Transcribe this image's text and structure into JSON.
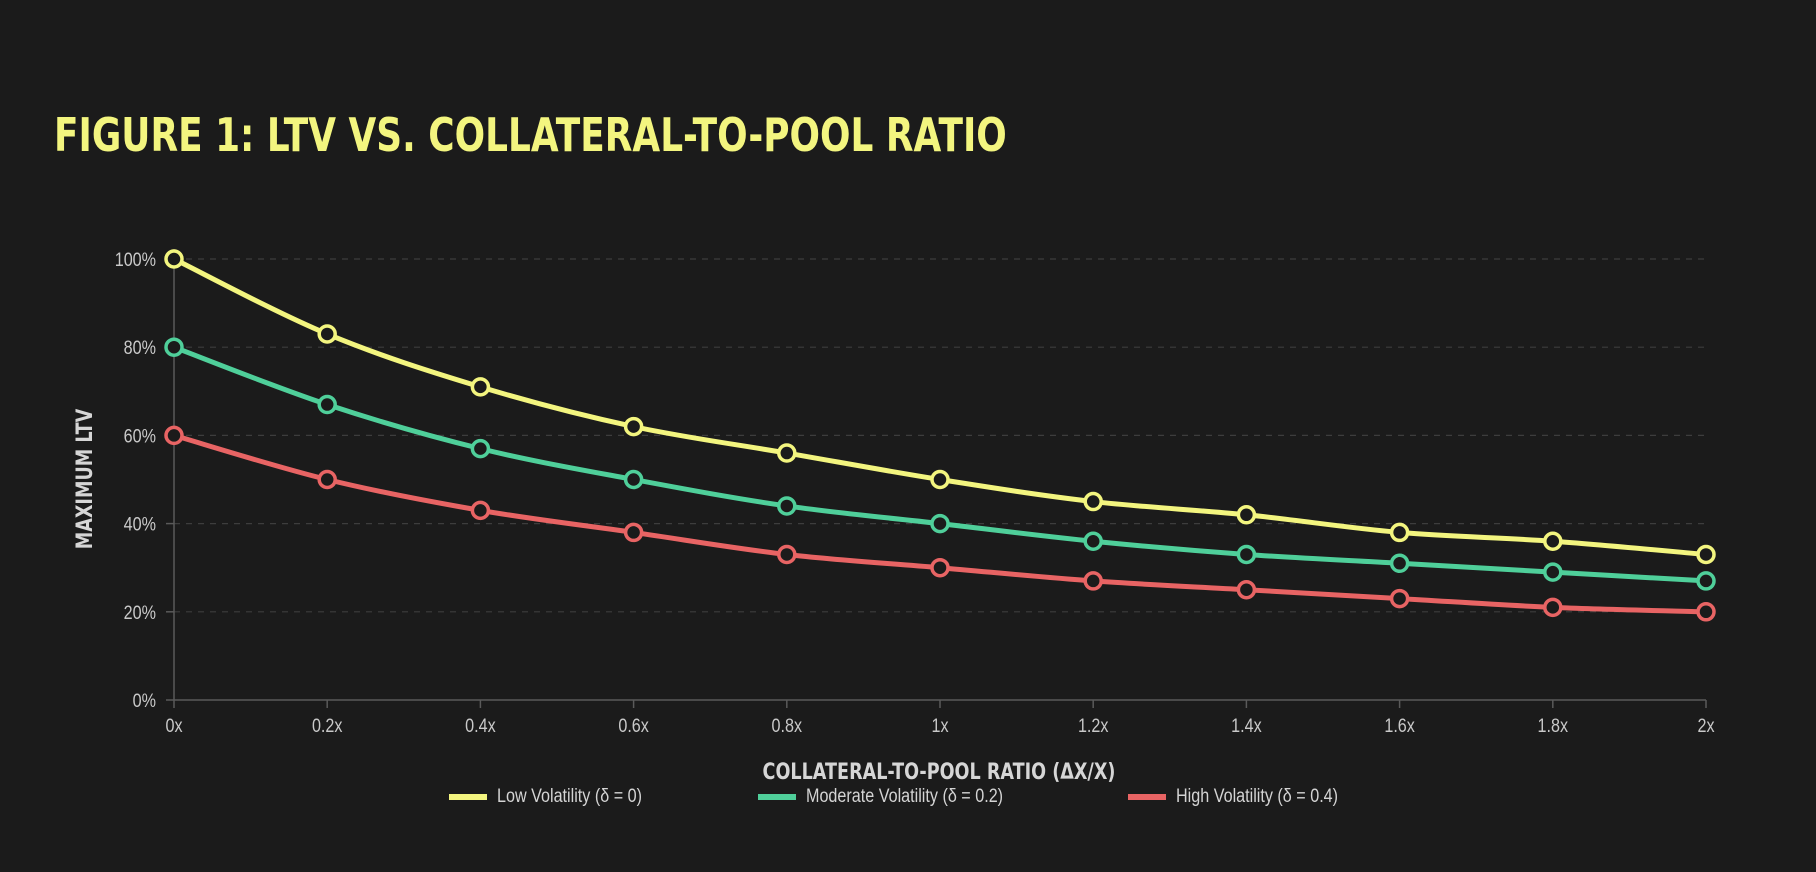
{
  "title": "FIGURE 1: LTV VS. COLLATERAL-TO-POOL RATIO",
  "chart_data": {
    "type": "line",
    "title": "FIGURE 1: LTV VS. COLLATERAL-TO-POOL RATIO",
    "xlabel": "COLLATERAL-TO-POOL RATIO (ΔX/X)",
    "ylabel": "MAXIMUM LTV",
    "x": [
      0,
      0.2,
      0.4,
      0.6,
      0.8,
      1.0,
      1.2,
      1.4,
      1.6,
      1.8,
      2.0
    ],
    "x_tick_labels": [
      "0x",
      "0.2x",
      "0.4x",
      "0.6x",
      "0.8x",
      "1x",
      "1.2x",
      "1.4x",
      "1.6x",
      "1.8x",
      "2x"
    ],
    "y_ticks": [
      0,
      20,
      40,
      60,
      80,
      100
    ],
    "y_tick_labels": [
      "0%",
      "20%",
      "40%",
      "60%",
      "80%",
      "100%"
    ],
    "xlim": [
      0,
      2
    ],
    "ylim": [
      0,
      100
    ],
    "grid": "horizontal dashed",
    "legend_position": "bottom",
    "series": [
      {
        "name": "Low Volatility (δ = 0)",
        "color": "#f3f57f",
        "values": [
          100,
          83,
          71,
          62,
          56,
          50,
          45,
          42,
          38,
          36,
          33
        ]
      },
      {
        "name": "Moderate Volatility (δ = 0.2)",
        "color": "#4fcf9a",
        "values": [
          80,
          67,
          57,
          50,
          44,
          40,
          36,
          33,
          31,
          29,
          27
        ]
      },
      {
        "name": "High Volatility (δ = 0.4)",
        "color": "#e86464",
        "values": [
          60,
          50,
          43,
          38,
          33,
          30,
          27,
          25,
          23,
          21,
          20
        ]
      }
    ]
  },
  "colors": {
    "background": "#1b1b1b",
    "title": "#f3f57f"
  }
}
